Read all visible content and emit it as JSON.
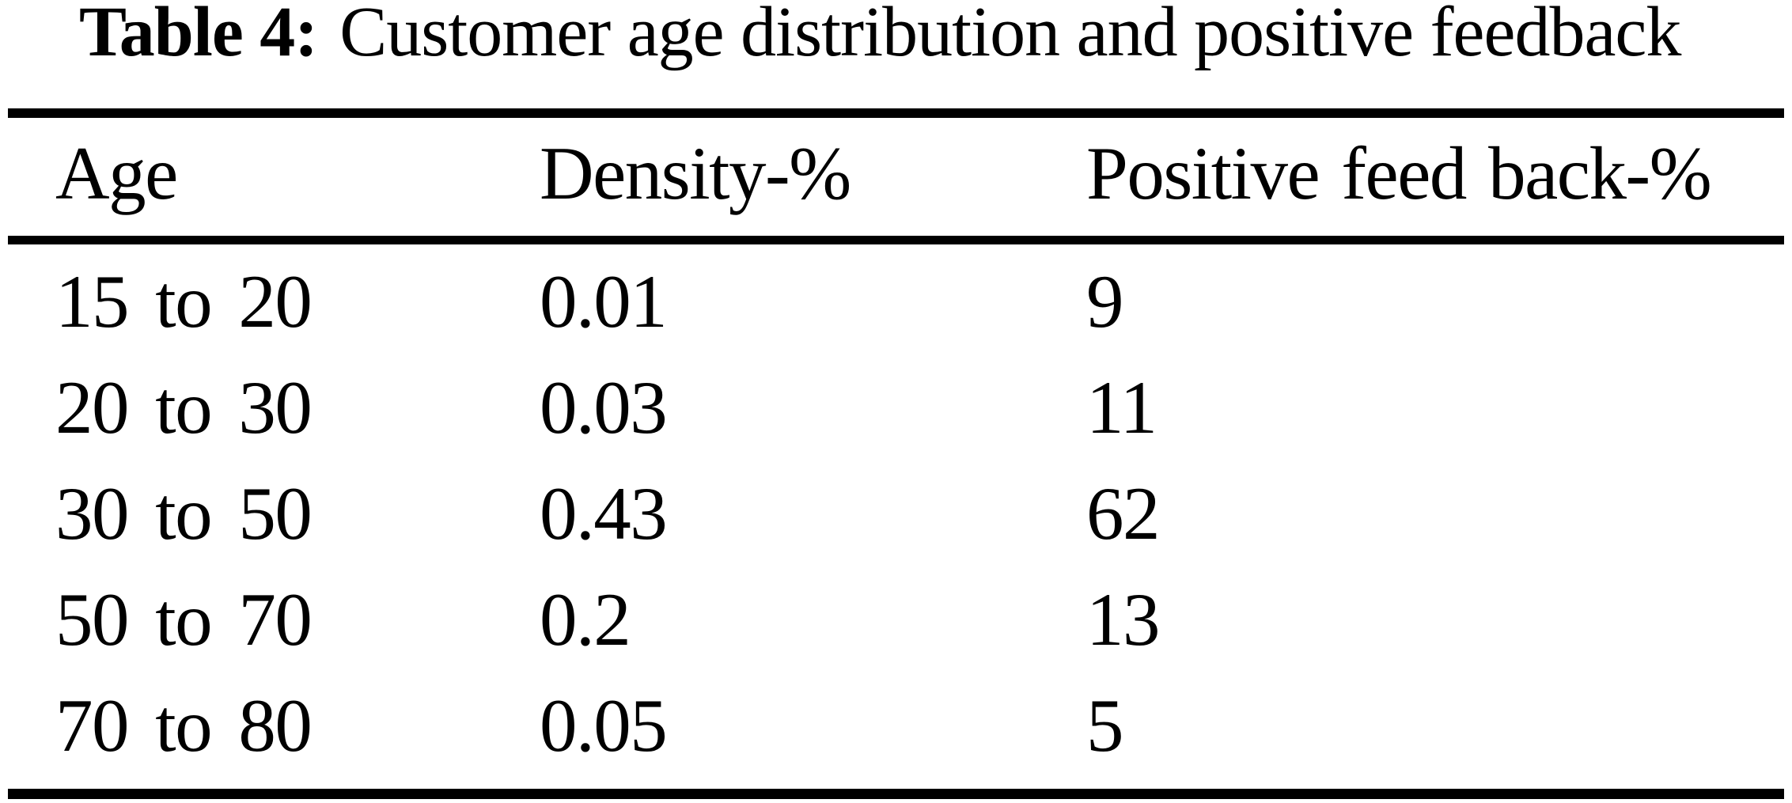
{
  "page": {
    "background": "#ffffff",
    "text_color": "#000000",
    "rule_color": "#000000"
  },
  "caption": {
    "label": "Table 4:",
    "text": "Customer age distribution and positive feedback"
  },
  "table": {
    "headers": {
      "age": "Age",
      "density": "Density-%",
      "feedback": "Positive feed back-%"
    },
    "rows": [
      {
        "age": "15 to 20",
        "density": "0.01",
        "feedback": "9"
      },
      {
        "age": "20 to 30",
        "density": "0.03",
        "feedback": "11"
      },
      {
        "age": "30 to 50",
        "density": "0.43",
        "feedback": "62"
      },
      {
        "age": "50 to 70",
        "density": "0.2",
        "feedback": "13"
      },
      {
        "age": "70 to 80",
        "density": "0.05",
        "feedback": "5"
      }
    ]
  }
}
